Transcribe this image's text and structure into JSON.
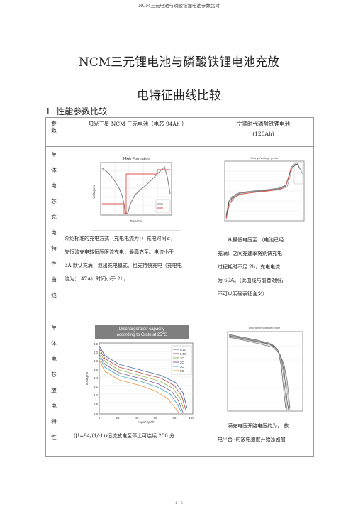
{
  "header": "NCM三元电池与磷酸铁锂电池参数比对",
  "title_line1": "NCM三元锂电池与磷酸铁锂电池充放",
  "title_line2": "电特征曲线比较",
  "section": "1. 性能参数比较",
  "table": {
    "h_col1": "参\n数",
    "h_col2": "阳光三星  NCM 三元电池（电芯     94Ah   ）",
    "h_col3_l1": "宁德时代磷酸铁锂电池",
    "h_col3_l2": "(120Ah)",
    "row1_label": [
      "单",
      "体",
      "电",
      "芯",
      "充",
      "电",
      "特",
      "性",
      "曲",
      "线"
    ],
    "row1_chart_left_title": "94Ah Formation",
    "row1_left_text": [
      "介绍标准的充电方式（充电电流为：）充电时间≤，",
      "先恒流充电转恒压限流充电，最高充至。电流小于",
      "3A 默认充满，退出充电模式。也支持快充电（充电电",
      "流为：  47A）时间小于   2h。"
    ],
    "row1_right_text": [
      "从最低电压至   （电池已经",
      "充满）之间充速率将别快充电",
      "过程耗时不足    2h，充电电流",
      "为 60A。（此曲线与前者对照，",
      "不可以明确表征含义）"
    ],
    "row2_label": [
      "单",
      "体",
      "电",
      "芯",
      "放",
      "电",
      "特",
      "性"
    ],
    "row2_chart_left_title_l1": "Dischargerated capacity",
    "row2_chart_left_title_l2": "according to Crate at 25℃",
    "row2_chart_left_xlabel": "capacity,Ah",
    "row2_chart_left_ylabel": "Voltage,V",
    "row2_left_legend": [
      "0.1C",
      "0.5C",
      "1C",
      "2C",
      "3C",
      "5C"
    ],
    "row2_left_text": "([I=94/(1/-1))恒流放电至停止可连续                  200 分",
    "row2_right_text": "满充电压开路电压约为，     放",
    "row2_right_text2": "电平台 -时放电速度开始急剧加"
  },
  "footer": "1 / 6"
}
